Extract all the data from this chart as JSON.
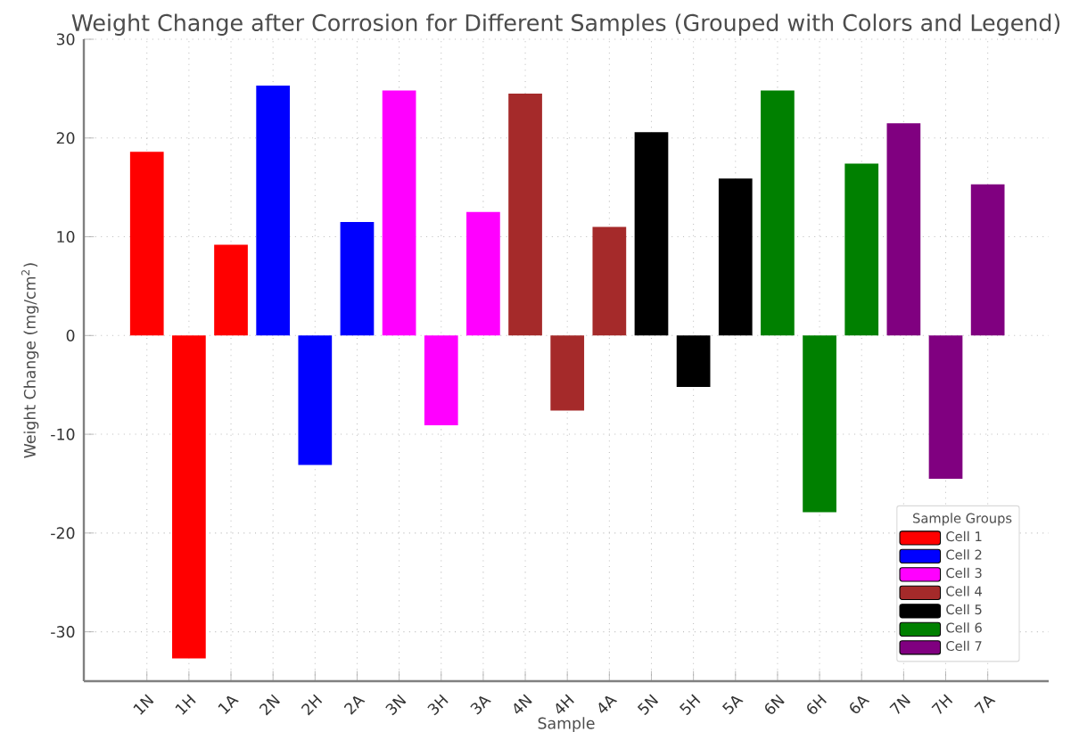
{
  "chart_data": {
    "type": "bar",
    "title": "Weight Change after Corrosion for Different Samples (Grouped with Colors and Legend)",
    "xlabel": "Sample",
    "ylabel": "Weight Change (mg/cm$^{2}$)",
    "legend_title": "Sample Groups",
    "categories": [
      "1N",
      "1H",
      "1A",
      "2N",
      "2H",
      "2A",
      "3N",
      "3H",
      "3A",
      "4N",
      "4H",
      "4A",
      "5N",
      "5H",
      "5A",
      "6N",
      "6H",
      "6A",
      "7N",
      "7H",
      "7A"
    ],
    "series": [
      {
        "name": "Cell 1",
        "color": "#ff0000",
        "values": [
          18.6,
          -32.7,
          9.2,
          null,
          null,
          null,
          null,
          null,
          null,
          null,
          null,
          null,
          null,
          null,
          null,
          null,
          null,
          null,
          null,
          null,
          null
        ]
      },
      {
        "name": "Cell 2",
        "color": "#0000ff",
        "values": [
          null,
          null,
          null,
          25.3,
          -13.1,
          11.5,
          null,
          null,
          null,
          null,
          null,
          null,
          null,
          null,
          null,
          null,
          null,
          null,
          null,
          null,
          null
        ]
      },
      {
        "name": "Cell 3",
        "color": "#ff00ff",
        "values": [
          null,
          null,
          null,
          null,
          null,
          null,
          24.8,
          -9.1,
          12.5,
          null,
          null,
          null,
          null,
          null,
          null,
          null,
          null,
          null,
          null,
          null,
          null
        ]
      },
      {
        "name": "Cell 4",
        "color": "#a52a2a",
        "values": [
          null,
          null,
          null,
          null,
          null,
          null,
          null,
          null,
          null,
          24.5,
          -7.6,
          11.0,
          null,
          null,
          null,
          null,
          null,
          null,
          null,
          null,
          null
        ]
      },
      {
        "name": "Cell 5",
        "color": "#000000",
        "values": [
          null,
          null,
          null,
          null,
          null,
          null,
          null,
          null,
          null,
          null,
          null,
          null,
          20.6,
          -5.2,
          15.9,
          null,
          null,
          null,
          null,
          null,
          null
        ]
      },
      {
        "name": "Cell 6",
        "color": "#008000",
        "values": [
          null,
          null,
          null,
          null,
          null,
          null,
          null,
          null,
          null,
          null,
          null,
          null,
          null,
          null,
          null,
          24.8,
          -17.9,
          17.4,
          null,
          null,
          null
        ]
      },
      {
        "name": "Cell 7",
        "color": "#800080",
        "values": [
          null,
          null,
          null,
          null,
          null,
          null,
          null,
          null,
          null,
          null,
          null,
          null,
          null,
          null,
          null,
          null,
          null,
          null,
          21.5,
          -14.5,
          15.3
        ]
      }
    ],
    "ylim": [
      -35,
      30
    ],
    "yticks": [
      -30,
      -20,
      -10,
      0,
      10,
      20,
      30
    ],
    "grid": true,
    "legend": "bottom right"
  }
}
